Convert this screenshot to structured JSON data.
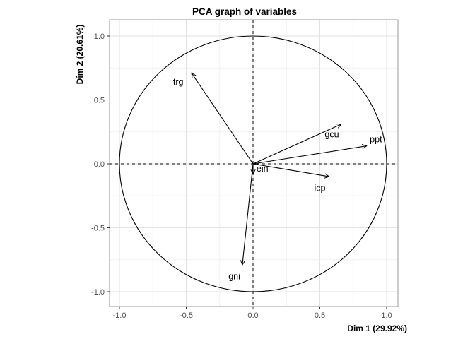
{
  "colors": {
    "background": "#ffffff",
    "panel_background": "#ffffff",
    "panel_border": "#a9a9a9",
    "grid_major": "#e2e2e2",
    "grid_minor": "#f0f0f0",
    "tick_mark": "#333333",
    "tick_label": "#4d4d4d",
    "foreground": "#000000"
  },
  "chart_data": {
    "type": "scatter",
    "subtype": "pca-variable-correlation-circle",
    "title": "PCA graph of variables",
    "xlabel": "Dim 1 (29.92%)",
    "ylabel": "Dim 2 (20.61%)",
    "xlim": [
      -1.08,
      1.09
    ],
    "ylim": [
      -1.12,
      1.13
    ],
    "xticks": [
      -1.0,
      -0.5,
      0.0,
      0.5,
      1.0
    ],
    "yticks": [
      -1.0,
      -0.5,
      0.0,
      0.5,
      1.0
    ],
    "xtick_labels": [
      "-1.0",
      "-0.5",
      "0.0",
      "0.5",
      "1.0"
    ],
    "ytick_labels": [
      "-1.0",
      "-0.5",
      "0.0",
      "0.5",
      "1.0"
    ],
    "grid": "major+minor",
    "minor_ticks": [
      -0.75,
      -0.25,
      0.25,
      0.75
    ],
    "legend": "none",
    "unit_circle": {
      "center": [
        0,
        0
      ],
      "radius": 1
    },
    "reference_lines": {
      "vertical_x": 0,
      "horizontal_y": 0,
      "style": "dashed"
    },
    "variables": [
      {
        "name": "trg",
        "x": -0.46,
        "y": 0.71,
        "label": {
          "x": -0.56,
          "y": 0.64
        }
      },
      {
        "name": "gcu",
        "x": 0.66,
        "y": 0.31,
        "label": {
          "x": 0.59,
          "y": 0.23
        }
      },
      {
        "name": "ppt",
        "x": 0.85,
        "y": 0.14,
        "label": {
          "x": 0.92,
          "y": 0.19
        }
      },
      {
        "name": "icp",
        "x": 0.57,
        "y": -0.1,
        "label": {
          "x": 0.5,
          "y": -0.19
        }
      },
      {
        "name": "gni",
        "x": -0.08,
        "y": -0.79,
        "label": {
          "x": -0.14,
          "y": -0.88
        }
      },
      {
        "name": "ein",
        "x": 0.0,
        "y": -0.08,
        "label": {
          "x": 0.07,
          "y": -0.04
        }
      }
    ]
  }
}
